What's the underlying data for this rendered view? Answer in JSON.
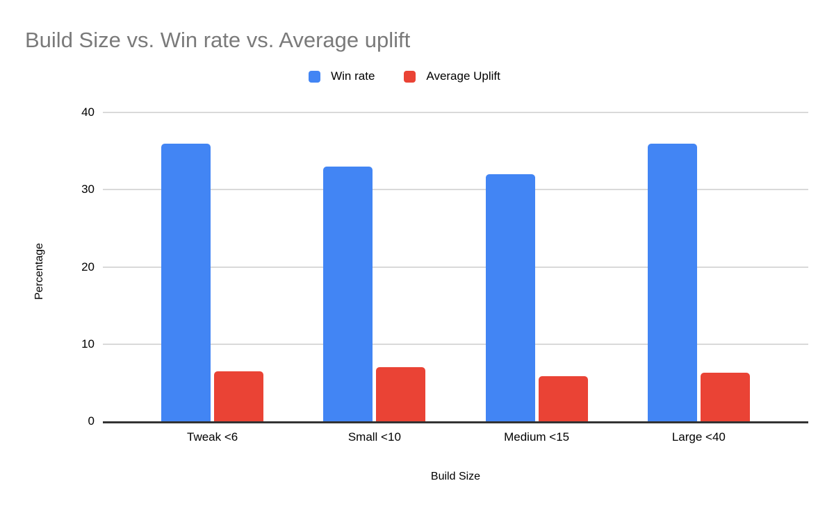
{
  "chart_data": {
    "type": "bar",
    "title": "Build Size vs. Win rate vs. Average uplift",
    "categories": [
      "Tweak <6",
      "Small <10",
      "Medium <15",
      "Large <40"
    ],
    "series": [
      {
        "name": "Win rate",
        "color": "#4285F4",
        "values": [
          36,
          33,
          32,
          36
        ]
      },
      {
        "name": "Average Uplift",
        "color": "#EA4335",
        "values": [
          6.5,
          7,
          5.8,
          6.3
        ]
      }
    ],
    "xlabel": "Build Size",
    "ylabel": "Percentage",
    "ylim": [
      0,
      40
    ],
    "yticks": [
      0,
      10,
      20,
      30,
      40
    ],
    "grid": true,
    "legend_position": "top"
  },
  "colors": {
    "background": "#ffffff",
    "title": "#7a7a7a",
    "text": "#000000",
    "axis_line": "#333333",
    "gridline": "#d9d9d9"
  }
}
